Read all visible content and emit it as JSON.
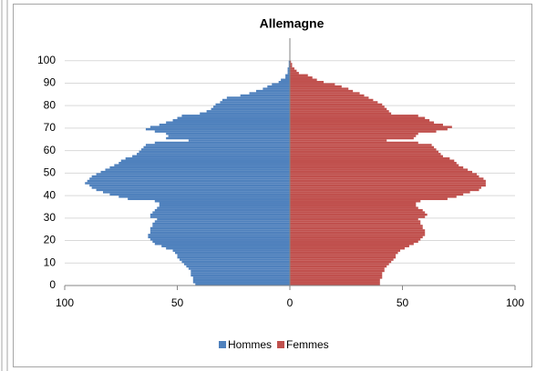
{
  "chart_data": {
    "type": "pyramid",
    "title": "Allemagne",
    "y": [
      0,
      1,
      2,
      3,
      4,
      5,
      6,
      7,
      8,
      9,
      10,
      11,
      12,
      13,
      14,
      15,
      16,
      17,
      18,
      19,
      20,
      21,
      22,
      23,
      24,
      25,
      26,
      27,
      28,
      29,
      30,
      31,
      32,
      33,
      34,
      35,
      36,
      37,
      38,
      39,
      40,
      41,
      42,
      43,
      44,
      45,
      46,
      47,
      48,
      49,
      50,
      51,
      52,
      53,
      54,
      55,
      56,
      57,
      58,
      59,
      60,
      61,
      62,
      63,
      64,
      65,
      66,
      67,
      68,
      69,
      70,
      71,
      72,
      73,
      74,
      75,
      76,
      77,
      78,
      79,
      80,
      81,
      82,
      83,
      84,
      85,
      86,
      87,
      88,
      89,
      90,
      91,
      92,
      93,
      94,
      95,
      96,
      97,
      98,
      99
    ],
    "series": [
      {
        "name": "Hommes",
        "color": "#4f81bd",
        "values": [
          -42,
          -43,
          -43,
          -43,
          -44,
          -44,
          -44,
          -45,
          -46,
          -47,
          -48,
          -49,
          -50,
          -50,
          -51,
          -52,
          -55,
          -57,
          -60,
          -61,
          -62,
          -63,
          -63,
          -62,
          -62,
          -62,
          -61,
          -61,
          -60,
          -59,
          -62,
          -62,
          -61,
          -60,
          -59,
          -58,
          -58,
          -60,
          -72,
          -76,
          -80,
          -83,
          -86,
          -88,
          -89,
          -91,
          -90,
          -89,
          -88,
          -86,
          -84,
          -82,
          -80,
          -78,
          -76,
          -75,
          -73,
          -70,
          -68,
          -67,
          -66,
          -65,
          -64,
          -60,
          -45,
          -55,
          -54,
          -55,
          -60,
          -64,
          -62,
          -58,
          -55,
          -52,
          -50,
          -48,
          -40,
          -37,
          -35,
          -34,
          -33,
          -31,
          -30,
          -28,
          -22,
          -18,
          -15,
          -12,
          -10,
          -8,
          -5,
          -4,
          -2,
          -2,
          -1,
          -1,
          -1,
          -0.5,
          -0.5,
          -0.5
        ]
      },
      {
        "name": "Femmes",
        "color": "#c0504d",
        "values": [
          40,
          40,
          40,
          41,
          41,
          41,
          42,
          42,
          43,
          44,
          45,
          46,
          47,
          47,
          48,
          49,
          51,
          53,
          55,
          57,
          58,
          59,
          60,
          60,
          60,
          59,
          59,
          58,
          58,
          57,
          60,
          61,
          60,
          59,
          57,
          56,
          56,
          58,
          70,
          74,
          77,
          80,
          84,
          85,
          87,
          87,
          87,
          86,
          84,
          83,
          81,
          79,
          77,
          75,
          74,
          73,
          71,
          68,
          67,
          66,
          65,
          64,
          63,
          57,
          43,
          55,
          56,
          57,
          65,
          70,
          72,
          68,
          64,
          62,
          60,
          57,
          45,
          44,
          43,
          42,
          41,
          39,
          37,
          35,
          33,
          31,
          28,
          26,
          23,
          20,
          15,
          12,
          10,
          8,
          4,
          3,
          2,
          1,
          1,
          0.5
        ]
      }
    ],
    "xlim": [
      -100,
      100
    ],
    "xticks": [
      {
        "value": -100,
        "label": "100"
      },
      {
        "value": -50,
        "label": "50"
      },
      0,
      50,
      100
    ],
    "ylim": [
      0,
      110
    ],
    "yticks": [
      0,
      10,
      20,
      30,
      40,
      50,
      60,
      70,
      80,
      90,
      100
    ],
    "grid": true
  }
}
